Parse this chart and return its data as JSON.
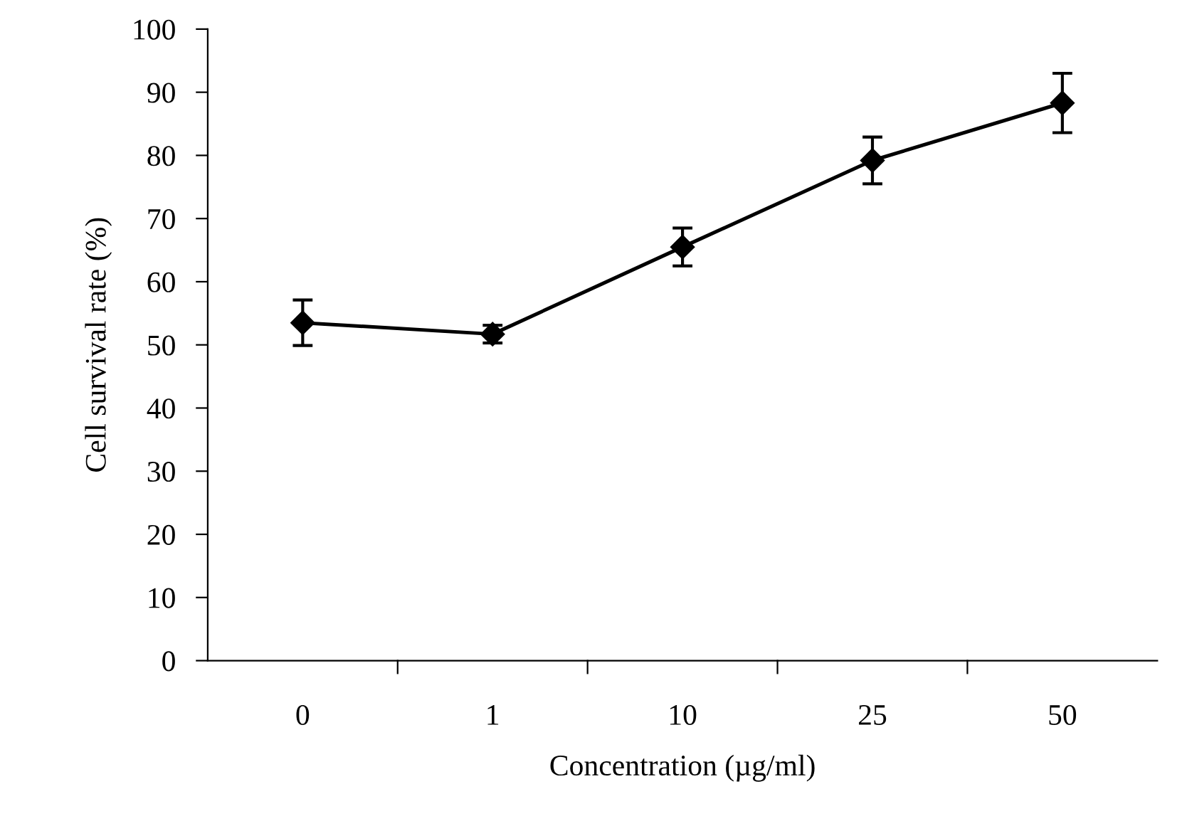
{
  "chart_data": {
    "type": "line",
    "xlabel": "Concentration (µg/ml)",
    "ylabel": "Cell survival rate (%)",
    "categories": [
      "0",
      "1",
      "10",
      "25",
      "50"
    ],
    "series": [
      {
        "color": "#000000",
        "values": [
          53.5,
          51.7,
          65.5,
          79.2,
          88.3
        ],
        "errors": [
          3.6,
          1.4,
          3.0,
          3.7,
          4.7
        ]
      }
    ],
    "ylim": [
      0,
      100
    ],
    "yticks": [
      0,
      10,
      20,
      30,
      40,
      50,
      60,
      70,
      80,
      90,
      100
    ],
    "marker": "diamond",
    "line_style": "solid",
    "grid": false,
    "legend": false
  }
}
